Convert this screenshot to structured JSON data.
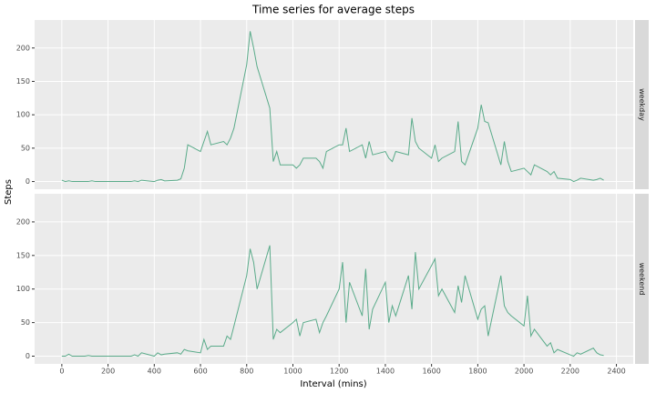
{
  "title": "Time series for average steps",
  "xlabel": "Interval (mins)",
  "ylabel": "Steps",
  "chart_data": [
    {
      "type": "line",
      "panel": "weekday",
      "color": "#5aab8a",
      "grid": true,
      "xlim": [
        -117.75,
        2472.75
      ],
      "ylim": [
        -11.5,
        241.9
      ],
      "xticks": [
        0,
        200,
        400,
        600,
        800,
        1000,
        1200,
        1400,
        1600,
        1800,
        2000,
        2200,
        2400
      ],
      "yticks": [
        0,
        50,
        100,
        150,
        200
      ],
      "x": [
        0,
        15,
        30,
        45,
        100,
        115,
        130,
        145,
        200,
        215,
        230,
        245,
        300,
        315,
        330,
        345,
        400,
        415,
        430,
        445,
        500,
        515,
        530,
        545,
        600,
        615,
        630,
        645,
        700,
        715,
        730,
        745,
        800,
        815,
        830,
        845,
        900,
        915,
        930,
        945,
        1000,
        1015,
        1030,
        1045,
        1100,
        1115,
        1130,
        1145,
        1200,
        1215,
        1230,
        1245,
        1300,
        1315,
        1330,
        1345,
        1400,
        1415,
        1430,
        1445,
        1500,
        1515,
        1530,
        1545,
        1600,
        1615,
        1630,
        1645,
        1700,
        1715,
        1730,
        1745,
        1800,
        1815,
        1830,
        1845,
        1900,
        1915,
        1930,
        1945,
        2000,
        2015,
        2030,
        2045,
        2100,
        2115,
        2130,
        2145,
        2200,
        2215,
        2230,
        2245,
        2300,
        2315,
        2330,
        2345
      ],
      "values": [
        2,
        0,
        1,
        0,
        0,
        0,
        1,
        0,
        0,
        0,
        0,
        0,
        0,
        1,
        0,
        2,
        0,
        2,
        3,
        1,
        2,
        4,
        20,
        55,
        45,
        60,
        75,
        55,
        60,
        55,
        65,
        80,
        175,
        225,
        200,
        172,
        110,
        30,
        45,
        25,
        25,
        20,
        25,
        35,
        35,
        30,
        20,
        45,
        55,
        55,
        80,
        45,
        55,
        35,
        60,
        40,
        45,
        35,
        30,
        45,
        40,
        95,
        60,
        50,
        35,
        55,
        30,
        35,
        45,
        90,
        30,
        25,
        80,
        115,
        90,
        88,
        25,
        60,
        30,
        15,
        20,
        15,
        10,
        25,
        15,
        10,
        15,
        5,
        3,
        0,
        2,
        5,
        2,
        3,
        5,
        2
      ]
    },
    {
      "type": "line",
      "panel": "weekend",
      "color": "#5aab8a",
      "grid": true,
      "xlim": [
        -117.75,
        2472.75
      ],
      "ylim": [
        -11.5,
        241.9
      ],
      "xticks": [
        0,
        200,
        400,
        600,
        800,
        1000,
        1200,
        1400,
        1600,
        1800,
        2000,
        2200,
        2400
      ],
      "yticks": [
        0,
        50,
        100,
        150,
        200
      ],
      "x": [
        0,
        15,
        30,
        45,
        100,
        115,
        130,
        145,
        200,
        215,
        230,
        245,
        300,
        315,
        330,
        345,
        400,
        415,
        430,
        445,
        500,
        515,
        530,
        545,
        600,
        615,
        630,
        645,
        700,
        715,
        730,
        745,
        800,
        815,
        830,
        845,
        900,
        915,
        930,
        945,
        1000,
        1015,
        1030,
        1045,
        1100,
        1115,
        1130,
        1145,
        1200,
        1215,
        1230,
        1245,
        1300,
        1315,
        1330,
        1345,
        1400,
        1415,
        1430,
        1445,
        1500,
        1515,
        1530,
        1545,
        1600,
        1615,
        1630,
        1645,
        1700,
        1715,
        1730,
        1745,
        1800,
        1815,
        1830,
        1845,
        1900,
        1915,
        1930,
        1945,
        2000,
        2015,
        2030,
        2045,
        2100,
        2115,
        2130,
        2145,
        2200,
        2215,
        2230,
        2245,
        2300,
        2315,
        2330,
        2345
      ],
      "values": [
        0,
        0,
        3,
        0,
        0,
        1,
        0,
        0,
        0,
        0,
        0,
        0,
        0,
        2,
        0,
        5,
        0,
        5,
        2,
        3,
        5,
        3,
        10,
        8,
        5,
        25,
        10,
        15,
        15,
        30,
        25,
        45,
        120,
        160,
        140,
        100,
        165,
        25,
        40,
        35,
        50,
        55,
        30,
        50,
        55,
        35,
        50,
        60,
        100,
        140,
        50,
        110,
        60,
        130,
        40,
        70,
        110,
        50,
        75,
        60,
        120,
        70,
        155,
        100,
        135,
        145,
        90,
        100,
        65,
        105,
        80,
        120,
        55,
        70,
        75,
        30,
        120,
        75,
        65,
        60,
        45,
        90,
        30,
        40,
        15,
        20,
        5,
        10,
        2,
        0,
        5,
        3,
        12,
        5,
        2,
        1
      ]
    }
  ]
}
